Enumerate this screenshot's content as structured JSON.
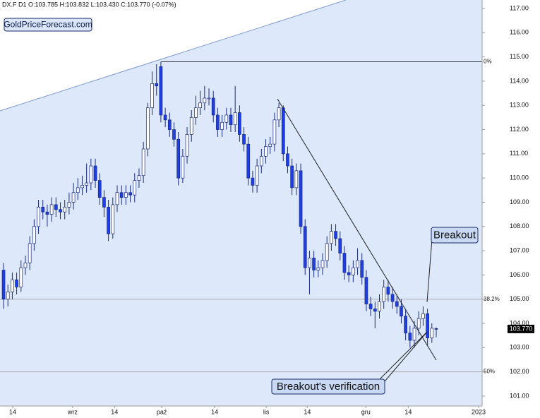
{
  "chart_data": {
    "type": "candlestick",
    "title": "DX.F  D1  O:103.785 H:103.832 L:103.430 C:103.770  (-0.07%)",
    "watermark": "GoldPriceForecast.com",
    "annotations": [
      "Breakout",
      "Breakout's verification"
    ],
    "last_price": {
      "value": 103.77,
      "label": "103.770"
    },
    "up_color": "#ffffff",
    "down_color": "#1f3fe6",
    "edge_color": "#1a2a80",
    "ylim": [
      100.59,
      117.35
    ],
    "yticks": [
      {
        "value": 101,
        "label": "101.00"
      },
      {
        "value": 102,
        "label": "102.00"
      },
      {
        "value": 103,
        "label": "103.00"
      },
      {
        "value": 104,
        "label": "104.00"
      },
      {
        "value": 105,
        "label": "105.00"
      },
      {
        "value": 106,
        "label": "106.00"
      },
      {
        "value": 107,
        "label": "107.00"
      },
      {
        "value": 108,
        "label": "108.00"
      },
      {
        "value": 109,
        "label": "109.00"
      },
      {
        "value": 110,
        "label": "110.00"
      },
      {
        "value": 111,
        "label": "111.00"
      },
      {
        "value": 112,
        "label": "112.00"
      },
      {
        "value": 113,
        "label": "113.00"
      },
      {
        "value": 114,
        "label": "114.00"
      },
      {
        "value": 115,
        "label": "115.00"
      },
      {
        "value": 116,
        "label": "116.00"
      },
      {
        "value": 117,
        "label": "117.00"
      }
    ],
    "xlim": [
      -0.81,
      109.5
    ],
    "xticks": [
      {
        "value": 2.1,
        "label": "14"
      },
      {
        "value": 15.8,
        "label": "wrz"
      },
      {
        "value": 25.4,
        "label": "14"
      },
      {
        "value": 36.2,
        "label": "paź"
      },
      {
        "value": 48.3,
        "label": "14"
      },
      {
        "value": 60.1,
        "label": "lis"
      },
      {
        "value": 69.5,
        "label": "14"
      },
      {
        "value": 82.9,
        "label": "gru"
      },
      {
        "value": 92.6,
        "label": "14"
      },
      {
        "value": 108.7,
        "label": "2023"
      }
    ],
    "levels": [
      {
        "label": "0%",
        "value": 114.8
      },
      {
        "label": "38.2%",
        "value": 105.0
      },
      {
        "label": "50%",
        "value": 102.0
      }
    ],
    "open": [
      106.2,
      105.0,
      105.3,
      105.8,
      105.5,
      106.3,
      106.5,
      107.3,
      108.0,
      108.8,
      108.6,
      108.5,
      108.9,
      108.7,
      108.6,
      108.8,
      109.0,
      109.4,
      109.6,
      109.7,
      109.8,
      110.5,
      109.9,
      109.2,
      108.8,
      107.7,
      108.9,
      109.4,
      109.2,
      109.4,
      109.3,
      109.9,
      110.1,
      111.2,
      112.9,
      113.9,
      114.6,
      112.6,
      112.4,
      112.0,
      111.6,
      110.0,
      110.9,
      111.8,
      112.5,
      112.9,
      113.1,
      113.3,
      113.3,
      112.6,
      112.0,
      112.3,
      112.6,
      112.2,
      112.7,
      111.8,
      111.4,
      110.0,
      109.7,
      110.5,
      110.9,
      111.3,
      111.4,
      112.4,
      112.9,
      111.0,
      110.5,
      109.6,
      110.3,
      108.0,
      106.3,
      106.7,
      106.2,
      106.3,
      106.6,
      107.3,
      107.8,
      107.5,
      106.9,
      106.1,
      106.0,
      106.3,
      106.6,
      105.9,
      104.8,
      104.6,
      104.5,
      104.9,
      105.5,
      105.2,
      104.9,
      104.7,
      104.3,
      103.6,
      103.3,
      103.8,
      104.2,
      104.4,
      103.4,
      103.785
    ],
    "high": [
      106.5,
      105.6,
      106.1,
      106.1,
      106.6,
      106.8,
      107.6,
      108.3,
      109.1,
      109.1,
      108.9,
      109.2,
      109.2,
      109.0,
      109.1,
      109.4,
      109.8,
      110.0,
      110.1,
      110.6,
      110.8,
      110.8,
      110.2,
      109.5,
      109.1,
      109.2,
      109.7,
      109.7,
      109.7,
      109.7,
      110.2,
      110.4,
      111.5,
      113.1,
      114.4,
      114.7,
      114.8,
      112.9,
      112.7,
      112.3,
      111.9,
      111.2,
      112.1,
      112.8,
      113.4,
      113.6,
      113.8,
      113.7,
      113.6,
      112.9,
      112.6,
      112.9,
      112.9,
      113.8,
      113.0,
      112.1,
      111.7,
      110.3,
      110.8,
      111.2,
      111.6,
      111.7,
      112.7,
      113.1,
      113.0,
      111.3,
      110.8,
      110.6,
      110.6,
      108.3,
      107.0,
      107.0,
      106.6,
      106.9,
      107.6,
      108.1,
      108.1,
      107.8,
      107.2,
      106.4,
      106.6,
      107.1,
      106.9,
      106.2,
      105.1,
      104.9,
      105.2,
      105.8,
      105.8,
      105.5,
      105.2,
      105.0,
      104.6,
      103.9,
      104.1,
      104.5,
      104.7,
      104.6,
      104.0,
      103.832
    ],
    "low": [
      104.6,
      104.7,
      105.0,
      105.2,
      105.3,
      106.0,
      106.2,
      107.0,
      107.7,
      108.3,
      108.0,
      108.2,
      108.4,
      108.3,
      108.3,
      108.5,
      108.7,
      109.1,
      109.3,
      109.4,
      109.5,
      109.6,
      108.9,
      108.4,
      107.4,
      107.5,
      108.6,
      108.9,
      108.9,
      109.0,
      109.0,
      109.6,
      109.8,
      110.9,
      112.6,
      113.4,
      112.3,
      112.1,
      111.7,
      111.3,
      109.7,
      109.8,
      110.6,
      111.5,
      112.2,
      112.6,
      112.8,
      113.0,
      112.3,
      111.7,
      111.7,
      112.0,
      111.9,
      111.9,
      111.5,
      111.1,
      109.7,
      109.4,
      109.4,
      110.2,
      110.6,
      111.0,
      111.1,
      112.1,
      110.7,
      110.2,
      109.3,
      109.3,
      107.7,
      106.0,
      105.2,
      105.9,
      105.9,
      106.0,
      106.3,
      107.0,
      107.2,
      106.6,
      105.8,
      105.7,
      105.7,
      106.0,
      105.6,
      104.5,
      104.3,
      103.8,
      104.2,
      104.6,
      104.9,
      104.6,
      104.4,
      104.0,
      103.3,
      103.0,
      103.0,
      103.5,
      103.9,
      103.1,
      103.2,
      103.43
    ],
    "close": [
      105.0,
      105.3,
      105.8,
      105.5,
      106.3,
      106.5,
      107.3,
      108.0,
      108.8,
      108.6,
      108.5,
      108.9,
      108.7,
      108.6,
      108.8,
      109.0,
      109.4,
      109.6,
      109.7,
      109.8,
      110.5,
      109.9,
      109.2,
      108.8,
      107.7,
      108.9,
      109.4,
      109.2,
      109.4,
      109.3,
      109.9,
      110.1,
      111.2,
      112.9,
      113.9,
      113.8,
      112.6,
      112.4,
      112.0,
      111.6,
      110.0,
      110.9,
      111.8,
      112.5,
      112.9,
      113.1,
      113.3,
      113.3,
      112.6,
      112.0,
      112.3,
      112.6,
      112.2,
      112.7,
      111.8,
      111.4,
      110.0,
      109.7,
      110.5,
      110.9,
      111.3,
      111.4,
      112.4,
      112.9,
      111.0,
      110.5,
      109.6,
      110.3,
      108.0,
      106.3,
      106.7,
      106.2,
      106.3,
      106.6,
      107.3,
      107.8,
      107.5,
      106.9,
      106.1,
      106.0,
      106.3,
      106.6,
      105.9,
      104.8,
      104.6,
      104.5,
      104.9,
      105.5,
      105.2,
      104.9,
      104.7,
      104.3,
      103.6,
      103.3,
      103.8,
      104.2,
      104.4,
      103.4,
      103.8,
      103.77
    ]
  }
}
